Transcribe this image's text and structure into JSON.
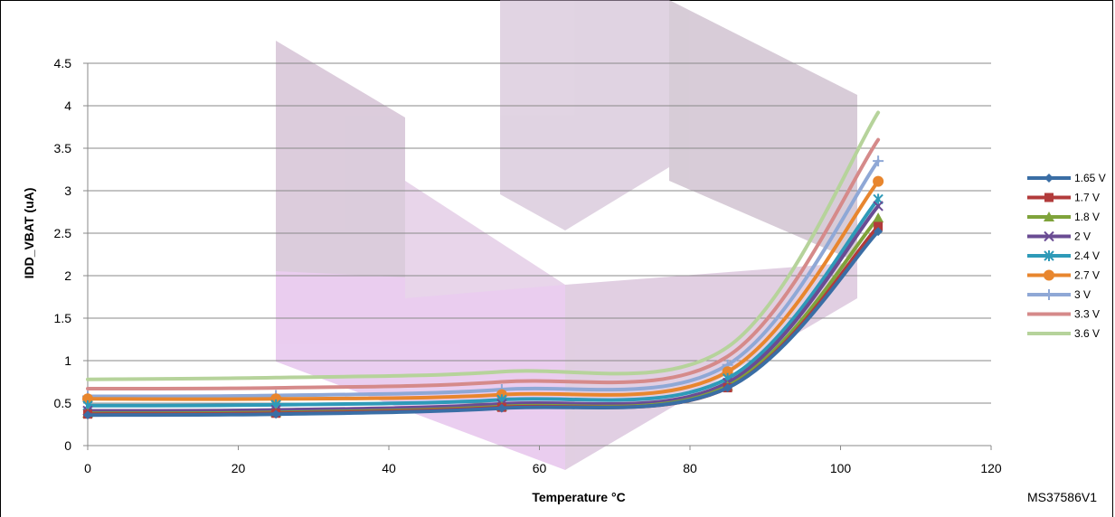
{
  "chart_data": {
    "type": "line",
    "title": "",
    "xlabel": "Temperature °C",
    "ylabel": "IDD_VBAT (uA)",
    "xlim": [
      0,
      120
    ],
    "ylim": [
      0,
      4.5
    ],
    "xticks": [
      0,
      20,
      40,
      60,
      80,
      100,
      120
    ],
    "yticks": [
      0,
      0.5,
      1,
      1.5,
      2,
      2.5,
      3,
      3.5,
      4,
      4.5
    ],
    "grid": "horizontal",
    "legend_position": "right",
    "x": [
      0,
      25,
      55,
      85,
      105
    ],
    "series": [
      {
        "name": "1.65 V",
        "color": "#3A6EA5",
        "marker": "diamond",
        "values": [
          0.36,
          0.37,
          0.44,
          0.68,
          2.52
        ]
      },
      {
        "name": "1.7 V",
        "color": "#B23B3B",
        "marker": "square",
        "values": [
          0.37,
          0.38,
          0.45,
          0.68,
          2.58
        ]
      },
      {
        "name": "1.8 V",
        "color": "#7FA33B",
        "marker": "triangle",
        "values": [
          0.38,
          0.39,
          0.46,
          0.7,
          2.68
        ]
      },
      {
        "name": "2 V",
        "color": "#6A4C93",
        "marker": "x",
        "values": [
          0.41,
          0.42,
          0.49,
          0.74,
          2.82
        ]
      },
      {
        "name": "2.4 V",
        "color": "#2E9AB8",
        "marker": "star",
        "values": [
          0.47,
          0.48,
          0.54,
          0.79,
          2.9
        ]
      },
      {
        "name": "2.7 V",
        "color": "#E8862E",
        "marker": "circle",
        "values": [
          0.55,
          0.55,
          0.6,
          0.87,
          3.11
        ]
      },
      {
        "name": "3 V",
        "color": "#8FA8D6",
        "marker": "plus",
        "values": [
          0.58,
          0.59,
          0.66,
          0.95,
          3.35
        ]
      },
      {
        "name": "3.3 V",
        "color": "#D58A8A",
        "marker": "none",
        "values": [
          0.67,
          0.68,
          0.75,
          1.05,
          3.6
        ]
      },
      {
        "name": "3.6 V",
        "color": "#B6D39B",
        "marker": "none",
        "values": [
          0.78,
          0.8,
          0.87,
          1.16,
          3.92
        ]
      }
    ]
  },
  "reference": "MS37586V1"
}
